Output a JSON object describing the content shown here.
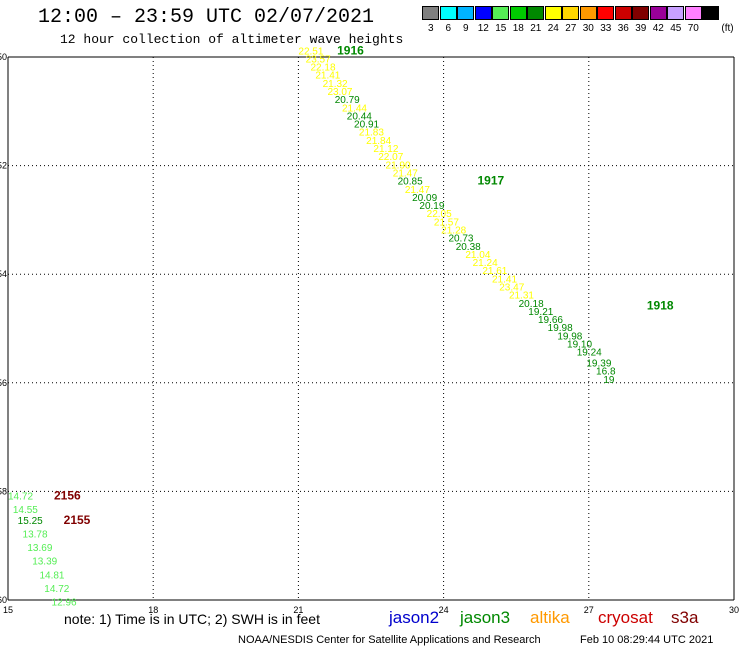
{
  "header": {
    "title": "12:00 – 23:59 UTC 02/07/2021",
    "subtitle": "12 hour collection of altimeter wave heights"
  },
  "legend": {
    "unit": "(ft)",
    "bins": [
      {
        "label": "3",
        "color": "#808080"
      },
      {
        "label": "6",
        "color": "#00ffff"
      },
      {
        "label": "9",
        "color": "#00b4ff"
      },
      {
        "label": "12",
        "color": "#0000ff"
      },
      {
        "label": "15",
        "color": "#55ee55"
      },
      {
        "label": "18",
        "color": "#00cc00"
      },
      {
        "label": "21",
        "color": "#008800"
      },
      {
        "label": "24",
        "color": "#ffff00"
      },
      {
        "label": "27",
        "color": "#ffd700"
      },
      {
        "label": "30",
        "color": "#ff9900"
      },
      {
        "label": "33",
        "color": "#ff0000"
      },
      {
        "label": "36",
        "color": "#cc0000"
      },
      {
        "label": "39",
        "color": "#800000"
      },
      {
        "label": "42",
        "color": "#990099"
      },
      {
        "label": "45",
        "color": "#c8a0ff"
      },
      {
        "label": "70",
        "color": "#ff80ff"
      },
      {
        "label": "",
        "color": "#000000"
      }
    ]
  },
  "map": {
    "lon_range": [
      15,
      30
    ],
    "lat_range": [
      -60,
      -50
    ],
    "lon_ticks": [
      15,
      18,
      21,
      24,
      27,
      30
    ],
    "lat_ticks": [
      -50,
      -52,
      -54,
      -56,
      -58,
      -60
    ]
  },
  "track_points": [
    {
      "lon": 21.0,
      "lat": -49.95,
      "value": "22.51",
      "color": "#ffff00"
    },
    {
      "lon": 21.15,
      "lat": -50.1,
      "value": "23.57",
      "color": "#ffff00"
    },
    {
      "lon": 21.25,
      "lat": -50.25,
      "value": "22.18",
      "color": "#ffff00"
    },
    {
      "lon": 21.35,
      "lat": -50.4,
      "value": "21.41",
      "color": "#ffff00"
    },
    {
      "lon": 21.5,
      "lat": -50.55,
      "value": "21.32",
      "color": "#ffff00"
    },
    {
      "lon": 21.6,
      "lat": -50.7,
      "value": "23.07",
      "color": "#ffff00"
    },
    {
      "lon": 21.75,
      "lat": -50.85,
      "value": "20.79",
      "color": "#008800"
    },
    {
      "lon": 21.9,
      "lat": -51.0,
      "value": "21.44",
      "color": "#ffff00"
    },
    {
      "lon": 22.0,
      "lat": -51.15,
      "value": "20.44",
      "color": "#008800"
    },
    {
      "lon": 22.15,
      "lat": -51.3,
      "value": "20.91",
      "color": "#008800"
    },
    {
      "lon": 22.25,
      "lat": -51.45,
      "value": "21.83",
      "color": "#ffff00"
    },
    {
      "lon": 22.4,
      "lat": -51.6,
      "value": "21.84",
      "color": "#ffff00"
    },
    {
      "lon": 22.55,
      "lat": -51.75,
      "value": "21.12",
      "color": "#ffff00"
    },
    {
      "lon": 22.65,
      "lat": -51.9,
      "value": "22.07",
      "color": "#ffff00"
    },
    {
      "lon": 22.8,
      "lat": -52.05,
      "value": "21.90",
      "color": "#ffff00"
    },
    {
      "lon": 22.95,
      "lat": -52.2,
      "value": "21.47",
      "color": "#ffff00"
    },
    {
      "lon": 23.05,
      "lat": -52.35,
      "value": "20.85",
      "color": "#008800"
    },
    {
      "lon": 23.2,
      "lat": -52.5,
      "value": "21.47",
      "color": "#ffff00"
    },
    {
      "lon": 23.35,
      "lat": -52.65,
      "value": "20.09",
      "color": "#008800"
    },
    {
      "lon": 23.5,
      "lat": -52.8,
      "value": "20.19",
      "color": "#008800"
    },
    {
      "lon": 23.65,
      "lat": -52.95,
      "value": "22.05",
      "color": "#ffff00"
    },
    {
      "lon": 23.8,
      "lat": -53.1,
      "value": "21.57",
      "color": "#ffff00"
    },
    {
      "lon": 23.95,
      "lat": -53.25,
      "value": "21.28",
      "color": "#ffff00"
    },
    {
      "lon": 24.1,
      "lat": -53.4,
      "value": "20.73",
      "color": "#008800"
    },
    {
      "lon": 24.25,
      "lat": -53.55,
      "value": "20.38",
      "color": "#008800"
    },
    {
      "lon": 24.45,
      "lat": -53.7,
      "value": "21.04",
      "color": "#ffff00"
    },
    {
      "lon": 24.6,
      "lat": -53.85,
      "value": "21.24",
      "color": "#ffff00"
    },
    {
      "lon": 24.8,
      "lat": -54.0,
      "value": "21.61",
      "color": "#ffff00"
    },
    {
      "lon": 25.0,
      "lat": -54.15,
      "value": "21.41",
      "color": "#ffff00"
    },
    {
      "lon": 25.15,
      "lat": -54.3,
      "value": "23.47",
      "color": "#ffff00"
    },
    {
      "lon": 25.35,
      "lat": -54.45,
      "value": "21.31",
      "color": "#ffff00"
    },
    {
      "lon": 25.55,
      "lat": -54.6,
      "value": "20.18",
      "color": "#008800"
    },
    {
      "lon": 25.75,
      "lat": -54.75,
      "value": "19.21",
      "color": "#008800"
    },
    {
      "lon": 25.95,
      "lat": -54.9,
      "value": "19.66",
      "color": "#008800"
    },
    {
      "lon": 26.15,
      "lat": -55.05,
      "value": "19.98",
      "color": "#008800"
    },
    {
      "lon": 26.35,
      "lat": -55.2,
      "value": "19.98",
      "color": "#008800"
    },
    {
      "lon": 26.55,
      "lat": -55.35,
      "value": "19.10",
      "color": "#008800"
    },
    {
      "lon": 26.75,
      "lat": -55.5,
      "value": "19.24",
      "color": "#008800"
    },
    {
      "lon": 26.95,
      "lat": -55.7,
      "value": "19.39",
      "color": "#008800"
    },
    {
      "lon": 27.15,
      "lat": -55.85,
      "value": "16.8",
      "color": "#008800"
    },
    {
      "lon": 27.3,
      "lat": -56.0,
      "value": "19",
      "color": "#008800"
    },
    {
      "lon": 15.0,
      "lat": -58.15,
      "value": "14.72",
      "color": "#55ee55"
    },
    {
      "lon": 15.1,
      "lat": -58.4,
      "value": "14.55",
      "color": "#55ee55"
    },
    {
      "lon": 15.2,
      "lat": -58.6,
      "value": "15.25",
      "color": "#008800"
    },
    {
      "lon": 15.3,
      "lat": -58.85,
      "value": "13.78",
      "color": "#55ee55"
    },
    {
      "lon": 15.4,
      "lat": -59.1,
      "value": "13.69",
      "color": "#55ee55"
    },
    {
      "lon": 15.5,
      "lat": -59.35,
      "value": "13.39",
      "color": "#55ee55"
    },
    {
      "lon": 15.65,
      "lat": -59.6,
      "value": "14.81",
      "color": "#55ee55"
    },
    {
      "lon": 15.75,
      "lat": -59.85,
      "value": "14.72",
      "color": "#55ee55"
    },
    {
      "lon": 15.9,
      "lat": -60.1,
      "value": "12.96",
      "color": "#55ee55"
    }
  ],
  "pass_labels": [
    {
      "lon": 21.8,
      "lat": -49.95,
      "text": "1916",
      "color": "#008800"
    },
    {
      "lon": 24.7,
      "lat": -52.35,
      "text": "1917",
      "color": "#008800"
    },
    {
      "lon": 28.2,
      "lat": -54.65,
      "text": "1918",
      "color": "#008800"
    },
    {
      "lon": 15.95,
      "lat": -58.15,
      "text": "2156",
      "color": "#800000"
    },
    {
      "lon": 16.15,
      "lat": -58.6,
      "text": "2155",
      "color": "#800000"
    }
  ],
  "footer": {
    "note": "note:  1) Time is in UTC;  2) SWH is in feet",
    "satellites": [
      {
        "name": "jason2",
        "color": "#0000cc"
      },
      {
        "name": "jason3",
        "color": "#008800"
      },
      {
        "name": "altika",
        "color": "#ff9900"
      },
      {
        "name": "cryosat",
        "color": "#cc0000"
      },
      {
        "name": "s3a",
        "color": "#800000"
      }
    ],
    "credit": "NOAA/NESDIS Center for Satellite Applications and Research",
    "timestamp": "Feb 10 08:29:44 UTC 2021"
  }
}
